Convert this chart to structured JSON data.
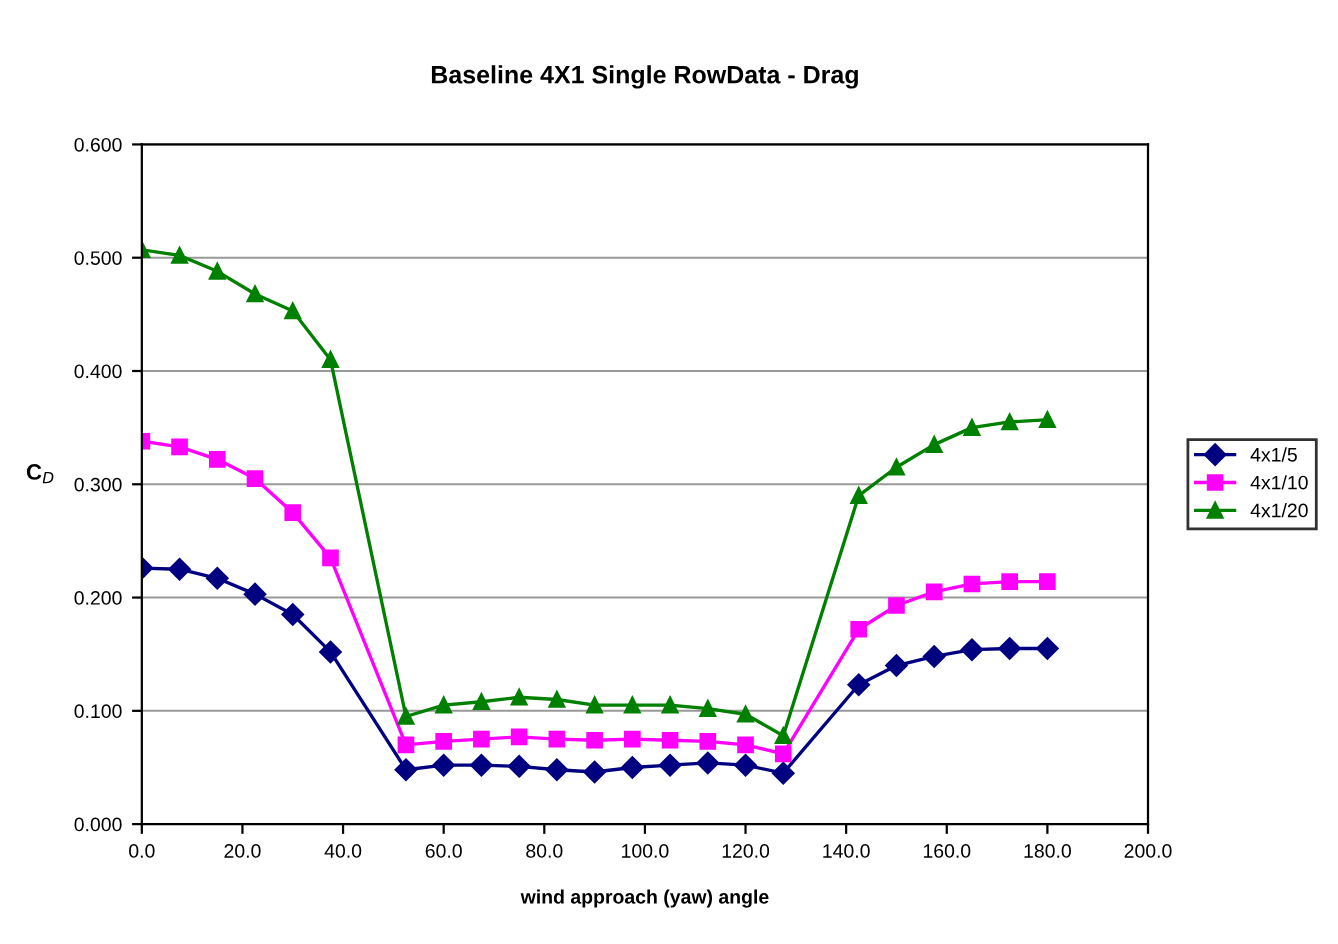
{
  "chart_data": {
    "type": "line",
    "title": "Baseline 4X1 Single RowData - Drag",
    "xlabel": "wind approach (yaw) angle",
    "ylabel": "C$_{D}$",
    "x": [
      0,
      7.5,
      15,
      22.5,
      30,
      37.5,
      52.5,
      60,
      67.5,
      75,
      82.5,
      90,
      97.5,
      105,
      112.5,
      120,
      127.5,
      142.5,
      150,
      157.5,
      165,
      172.5,
      180
    ],
    "series": [
      {
        "name": "4x1/5",
        "color": "#000080",
        "marker": "diamond",
        "values": [
          0.226,
          0.225,
          0.217,
          0.203,
          0.185,
          0.152,
          0.048,
          0.052,
          0.052,
          0.051,
          0.048,
          0.046,
          0.05,
          0.052,
          0.054,
          0.052,
          0.045,
          0.123,
          0.14,
          0.148,
          0.154,
          0.155,
          0.155
        ]
      },
      {
        "name": "4x1/10",
        "color": "#ff00ff",
        "marker": "square",
        "values": [
          0.338,
          0.333,
          0.322,
          0.305,
          0.275,
          0.235,
          0.07,
          0.073,
          0.075,
          0.077,
          0.075,
          0.074,
          0.075,
          0.074,
          0.073,
          0.07,
          0.062,
          0.172,
          0.193,
          0.205,
          0.212,
          0.214,
          0.214
        ]
      },
      {
        "name": "4x1/20",
        "color": "#008000",
        "marker": "triangle",
        "values": [
          0.507,
          0.502,
          0.488,
          0.468,
          0.453,
          0.41,
          0.095,
          0.105,
          0.108,
          0.112,
          0.11,
          0.105,
          0.105,
          0.105,
          0.102,
          0.097,
          0.078,
          0.29,
          0.315,
          0.335,
          0.35,
          0.355,
          0.357
        ]
      }
    ],
    "xlim": [
      0,
      200
    ],
    "xticks": [
      {
        "value": 0,
        "label": "0.0"
      },
      {
        "value": 20,
        "label": "20.0"
      },
      {
        "value": 40,
        "label": "40.0"
      },
      {
        "value": 60,
        "label": "60.0"
      },
      {
        "value": 80,
        "label": "80.0"
      },
      {
        "value": 100,
        "label": "100.0"
      },
      {
        "value": 120,
        "label": "120.0"
      },
      {
        "value": 140,
        "label": "140.0"
      },
      {
        "value": 160,
        "label": "160.0"
      },
      {
        "value": 180,
        "label": "180.0"
      },
      {
        "value": 200,
        "label": "200.0"
      }
    ],
    "ylim": [
      0,
      0.6
    ],
    "yticks": [
      {
        "value": 0,
        "label": "0.000"
      },
      {
        "value": 0.1,
        "label": "0.100"
      },
      {
        "value": 0.2,
        "label": "0.200"
      },
      {
        "value": 0.3,
        "label": "0.300"
      },
      {
        "value": 0.4,
        "label": "0.400"
      },
      {
        "value": 0.5,
        "label": "0.500"
      },
      {
        "value": 0.6,
        "label": "0.600"
      }
    ],
    "grid": "y",
    "legend": "right",
    "line_style": "solid"
  }
}
